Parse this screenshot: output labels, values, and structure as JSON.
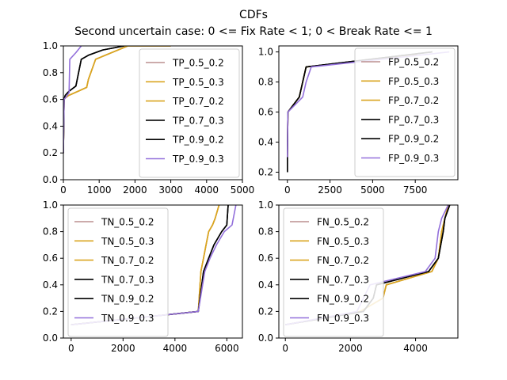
{
  "figure": {
    "title": "CDFs",
    "subtitle": "Second uncertain case: 0 <= Fix Rate < 1; 0 < Break Rate <= 1"
  },
  "colors": {
    "rosybrown": "#bc8f8f",
    "goldenrod": "#daa520",
    "black": "#000000",
    "mediumpurple": "#9370db"
  },
  "chart_data": [
    {
      "type": "line",
      "panel": "TP",
      "xlim": [
        0,
        5000
      ],
      "ylim": [
        0,
        1.0
      ],
      "xticks": [
        "0",
        "1000",
        "2000",
        "3000",
        "4000",
        "5000"
      ],
      "yticks": [
        "0.0",
        "0.2",
        "0.4",
        "0.6",
        "0.8",
        "1.0"
      ],
      "legend_position": "upper right",
      "series": [
        {
          "name": "TP_0.5_0.2",
          "color": "#bc8f8f",
          "x": [
            0,
            20,
            50,
            150,
            400,
            650,
            700,
            900,
            1800,
            3000
          ],
          "y": [
            0.2,
            0.6,
            0.61,
            0.63,
            0.66,
            0.69,
            0.75,
            0.9,
            1.0,
            1.0
          ]
        },
        {
          "name": "TP_0.5_0.3",
          "color": "#daa520",
          "x": [
            0,
            20,
            50,
            150,
            400,
            650,
            700,
            900,
            1800,
            3000
          ],
          "y": [
            0.2,
            0.6,
            0.61,
            0.63,
            0.66,
            0.69,
            0.75,
            0.9,
            1.0,
            1.0
          ]
        },
        {
          "name": "TP_0.7_0.2",
          "color": "#daa520",
          "x": [
            0,
            20,
            50,
            150,
            400,
            650,
            700,
            900,
            1800,
            3000
          ],
          "y": [
            0.2,
            0.6,
            0.61,
            0.63,
            0.66,
            0.69,
            0.75,
            0.9,
            1.0,
            1.0
          ]
        },
        {
          "name": "TP_0.7_0.3",
          "color": "#000000",
          "x": [
            0,
            20,
            50,
            150,
            350,
            500,
            700,
            1100,
            1700
          ],
          "y": [
            0.2,
            0.6,
            0.63,
            0.66,
            0.7,
            0.9,
            0.93,
            0.97,
            1.0
          ]
        },
        {
          "name": "TP_0.9_0.2",
          "color": "#000000",
          "x": [
            0,
            20,
            50,
            150,
            350,
            500,
            700,
            1100,
            1700
          ],
          "y": [
            0.2,
            0.6,
            0.63,
            0.66,
            0.7,
            0.9,
            0.93,
            0.97,
            1.0
          ]
        },
        {
          "name": "TP_0.9_0.3",
          "color": "#9370db",
          "x": [
            0,
            20,
            80,
            160,
            180,
            350,
            500
          ],
          "y": [
            0.2,
            0.6,
            0.62,
            0.65,
            0.9,
            0.95,
            1.0
          ]
        }
      ]
    },
    {
      "type": "line",
      "panel": "FP",
      "xlim": [
        -500,
        10000
      ],
      "ylim": [
        0.15,
        1.04
      ],
      "xticks": [
        "0",
        "2500",
        "5000",
        "7500"
      ],
      "yticks": [
        "0.2",
        "0.4",
        "0.6",
        "0.8",
        "1.0"
      ],
      "legend_position": "lower right",
      "series": [
        {
          "name": "FP_0.5_0.2",
          "color": "#bc8f8f",
          "x": [
            0,
            30,
            700,
            900,
            1100,
            7600
          ],
          "y": [
            0.3,
            0.6,
            0.7,
            0.8,
            0.9,
            0.98
          ]
        },
        {
          "name": "FP_0.5_0.3",
          "color": "#daa520",
          "x": [
            0,
            30,
            700,
            900,
            1100,
            7600
          ],
          "y": [
            0.3,
            0.6,
            0.7,
            0.8,
            0.9,
            0.98
          ]
        },
        {
          "name": "FP_0.7_0.2",
          "color": "#daa520",
          "x": [
            0,
            30,
            700,
            900,
            1100,
            7600
          ],
          "y": [
            0.3,
            0.6,
            0.7,
            0.8,
            0.9,
            0.98
          ]
        },
        {
          "name": "FP_0.7_0.3",
          "color": "#000000",
          "x": [
            0,
            0,
            30,
            700,
            900,
            1100,
            8500
          ],
          "y": [
            0.2,
            0.3,
            0.6,
            0.7,
            0.8,
            0.9,
            1.0
          ]
        },
        {
          "name": "FP_0.9_0.2",
          "color": "#000000",
          "x": [
            0,
            0,
            30,
            700,
            900,
            1100,
            8500
          ],
          "y": [
            0.2,
            0.3,
            0.6,
            0.7,
            0.8,
            0.9,
            1.0
          ]
        },
        {
          "name": "FP_0.9_0.3",
          "color": "#9370db",
          "x": [
            0,
            30,
            900,
            1100,
            1400,
            9500
          ],
          "y": [
            0.3,
            0.6,
            0.7,
            0.8,
            0.9,
            1.0
          ]
        }
      ]
    },
    {
      "type": "line",
      "panel": "TN",
      "xlim": [
        -300,
        6600
      ],
      "ylim": [
        0,
        1.0
      ],
      "xticks": [
        "0",
        "2000",
        "4000",
        "6000"
      ],
      "yticks": [
        "0.0",
        "0.2",
        "0.4",
        "0.6",
        "0.8",
        "1.0"
      ],
      "legend_position": "upper left",
      "series": [
        {
          "name": "TN_0.5_0.2",
          "color": "#bc8f8f",
          "x": [
            0,
            4900,
            5000,
            5100,
            5200,
            5300,
            5450,
            5550,
            5700
          ],
          "y": [
            0.1,
            0.2,
            0.5,
            0.6,
            0.7,
            0.8,
            0.85,
            0.9,
            1.0
          ]
        },
        {
          "name": "TN_0.5_0.3",
          "color": "#daa520",
          "x": [
            0,
            4900,
            5000,
            5100,
            5200,
            5300,
            5450,
            5550,
            5700
          ],
          "y": [
            0.1,
            0.2,
            0.5,
            0.6,
            0.7,
            0.8,
            0.85,
            0.9,
            1.0
          ]
        },
        {
          "name": "TN_0.7_0.2",
          "color": "#daa520",
          "x": [
            0,
            4900,
            5000,
            5100,
            5200,
            5300,
            5450,
            5550,
            5700
          ],
          "y": [
            0.1,
            0.2,
            0.5,
            0.6,
            0.7,
            0.8,
            0.85,
            0.9,
            1.0
          ]
        },
        {
          "name": "TN_0.7_0.3",
          "color": "#000000",
          "x": [
            0,
            4900,
            5100,
            5300,
            5500,
            5800,
            6000,
            6050
          ],
          "y": [
            0.1,
            0.2,
            0.5,
            0.6,
            0.7,
            0.8,
            0.85,
            1.0
          ]
        },
        {
          "name": "TN_0.9_0.2",
          "color": "#000000",
          "x": [
            0,
            4900,
            5100,
            5300,
            5500,
            5800,
            6000,
            6050
          ],
          "y": [
            0.1,
            0.2,
            0.5,
            0.6,
            0.7,
            0.8,
            0.85,
            1.0
          ]
        },
        {
          "name": "TN_0.9_0.3",
          "color": "#9370db",
          "x": [
            0,
            4900,
            5150,
            5350,
            5600,
            5900,
            6200,
            6350
          ],
          "y": [
            0.1,
            0.2,
            0.5,
            0.6,
            0.7,
            0.8,
            0.85,
            1.0
          ]
        }
      ]
    },
    {
      "type": "line",
      "panel": "FN",
      "xlim": [
        -200,
        5300
      ],
      "ylim": [
        0,
        1.0
      ],
      "xticks": [
        "0",
        "2000",
        "4000"
      ],
      "yticks": [
        "0.0",
        "0.2",
        "0.4",
        "0.6",
        "0.8",
        "1.0"
      ],
      "legend_position": "upper left",
      "series": [
        {
          "name": "FN_0.5_0.2",
          "color": "#bc8f8f",
          "x": [
            0,
            2300,
            3000,
            3100,
            4500,
            4700,
            4800,
            4900,
            5000
          ],
          "y": [
            0.1,
            0.2,
            0.3,
            0.4,
            0.5,
            0.6,
            0.8,
            0.9,
            1.0
          ]
        },
        {
          "name": "FN_0.5_0.3",
          "color": "#daa520",
          "x": [
            0,
            2300,
            3000,
            3100,
            4500,
            4700,
            4800,
            4900,
            5000
          ],
          "y": [
            0.1,
            0.2,
            0.3,
            0.4,
            0.5,
            0.6,
            0.8,
            0.9,
            1.0
          ]
        },
        {
          "name": "FN_0.7_0.2",
          "color": "#daa520",
          "x": [
            0,
            2300,
            3000,
            3100,
            4500,
            4700,
            4800,
            4900,
            5000
          ],
          "y": [
            0.1,
            0.2,
            0.3,
            0.4,
            0.5,
            0.6,
            0.8,
            0.9,
            1.0
          ]
        },
        {
          "name": "FN_0.7_0.3",
          "color": "#000000",
          "x": [
            0,
            2400,
            2700,
            2800,
            4400,
            4700,
            4850,
            4900,
            5050
          ],
          "y": [
            0.1,
            0.2,
            0.3,
            0.4,
            0.5,
            0.6,
            0.8,
            0.9,
            1.0
          ]
        },
        {
          "name": "FN_0.9_0.2",
          "color": "#000000",
          "x": [
            0,
            2400,
            2700,
            2800,
            4400,
            4700,
            4850,
            4900,
            5050
          ],
          "y": [
            0.1,
            0.2,
            0.3,
            0.4,
            0.5,
            0.6,
            0.8,
            0.9,
            1.0
          ]
        },
        {
          "name": "FN_0.9_0.3",
          "color": "#9370db",
          "x": [
            0,
            2200,
            2400,
            2600,
            4300,
            4600,
            4700,
            4800,
            5000
          ],
          "y": [
            0.1,
            0.2,
            0.3,
            0.4,
            0.5,
            0.6,
            0.8,
            0.9,
            1.0
          ]
        }
      ]
    }
  ]
}
